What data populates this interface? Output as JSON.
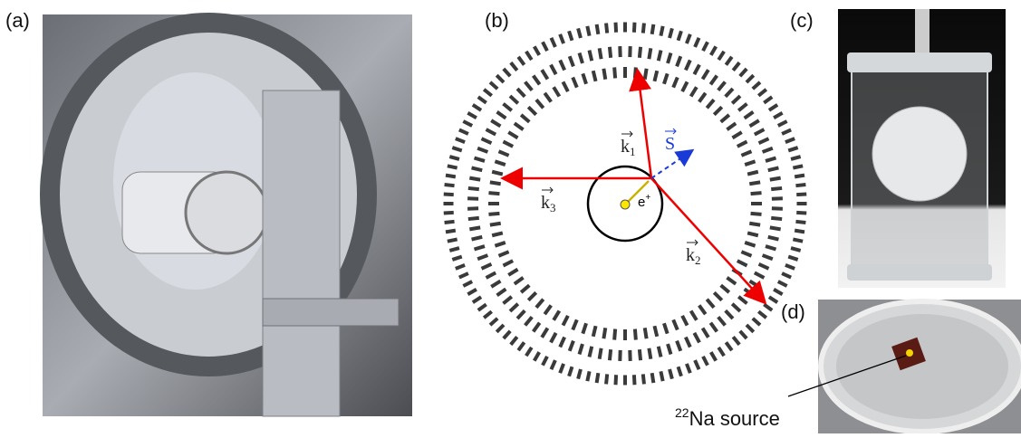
{
  "panels": {
    "a": "(a)",
    "b": "(b)",
    "c": "(c)",
    "d": "(d)"
  },
  "diagram": {
    "k1": {
      "symbol": "k",
      "subscript": "1"
    },
    "k2": {
      "symbol": "k",
      "subscript": "2"
    },
    "k3": {
      "symbol": "k",
      "subscript": "3"
    },
    "spin": "S",
    "positron": {
      "symbol": "e",
      "superscript": "+"
    }
  },
  "source_label": {
    "superscript": "22",
    "text": "Na source"
  }
}
